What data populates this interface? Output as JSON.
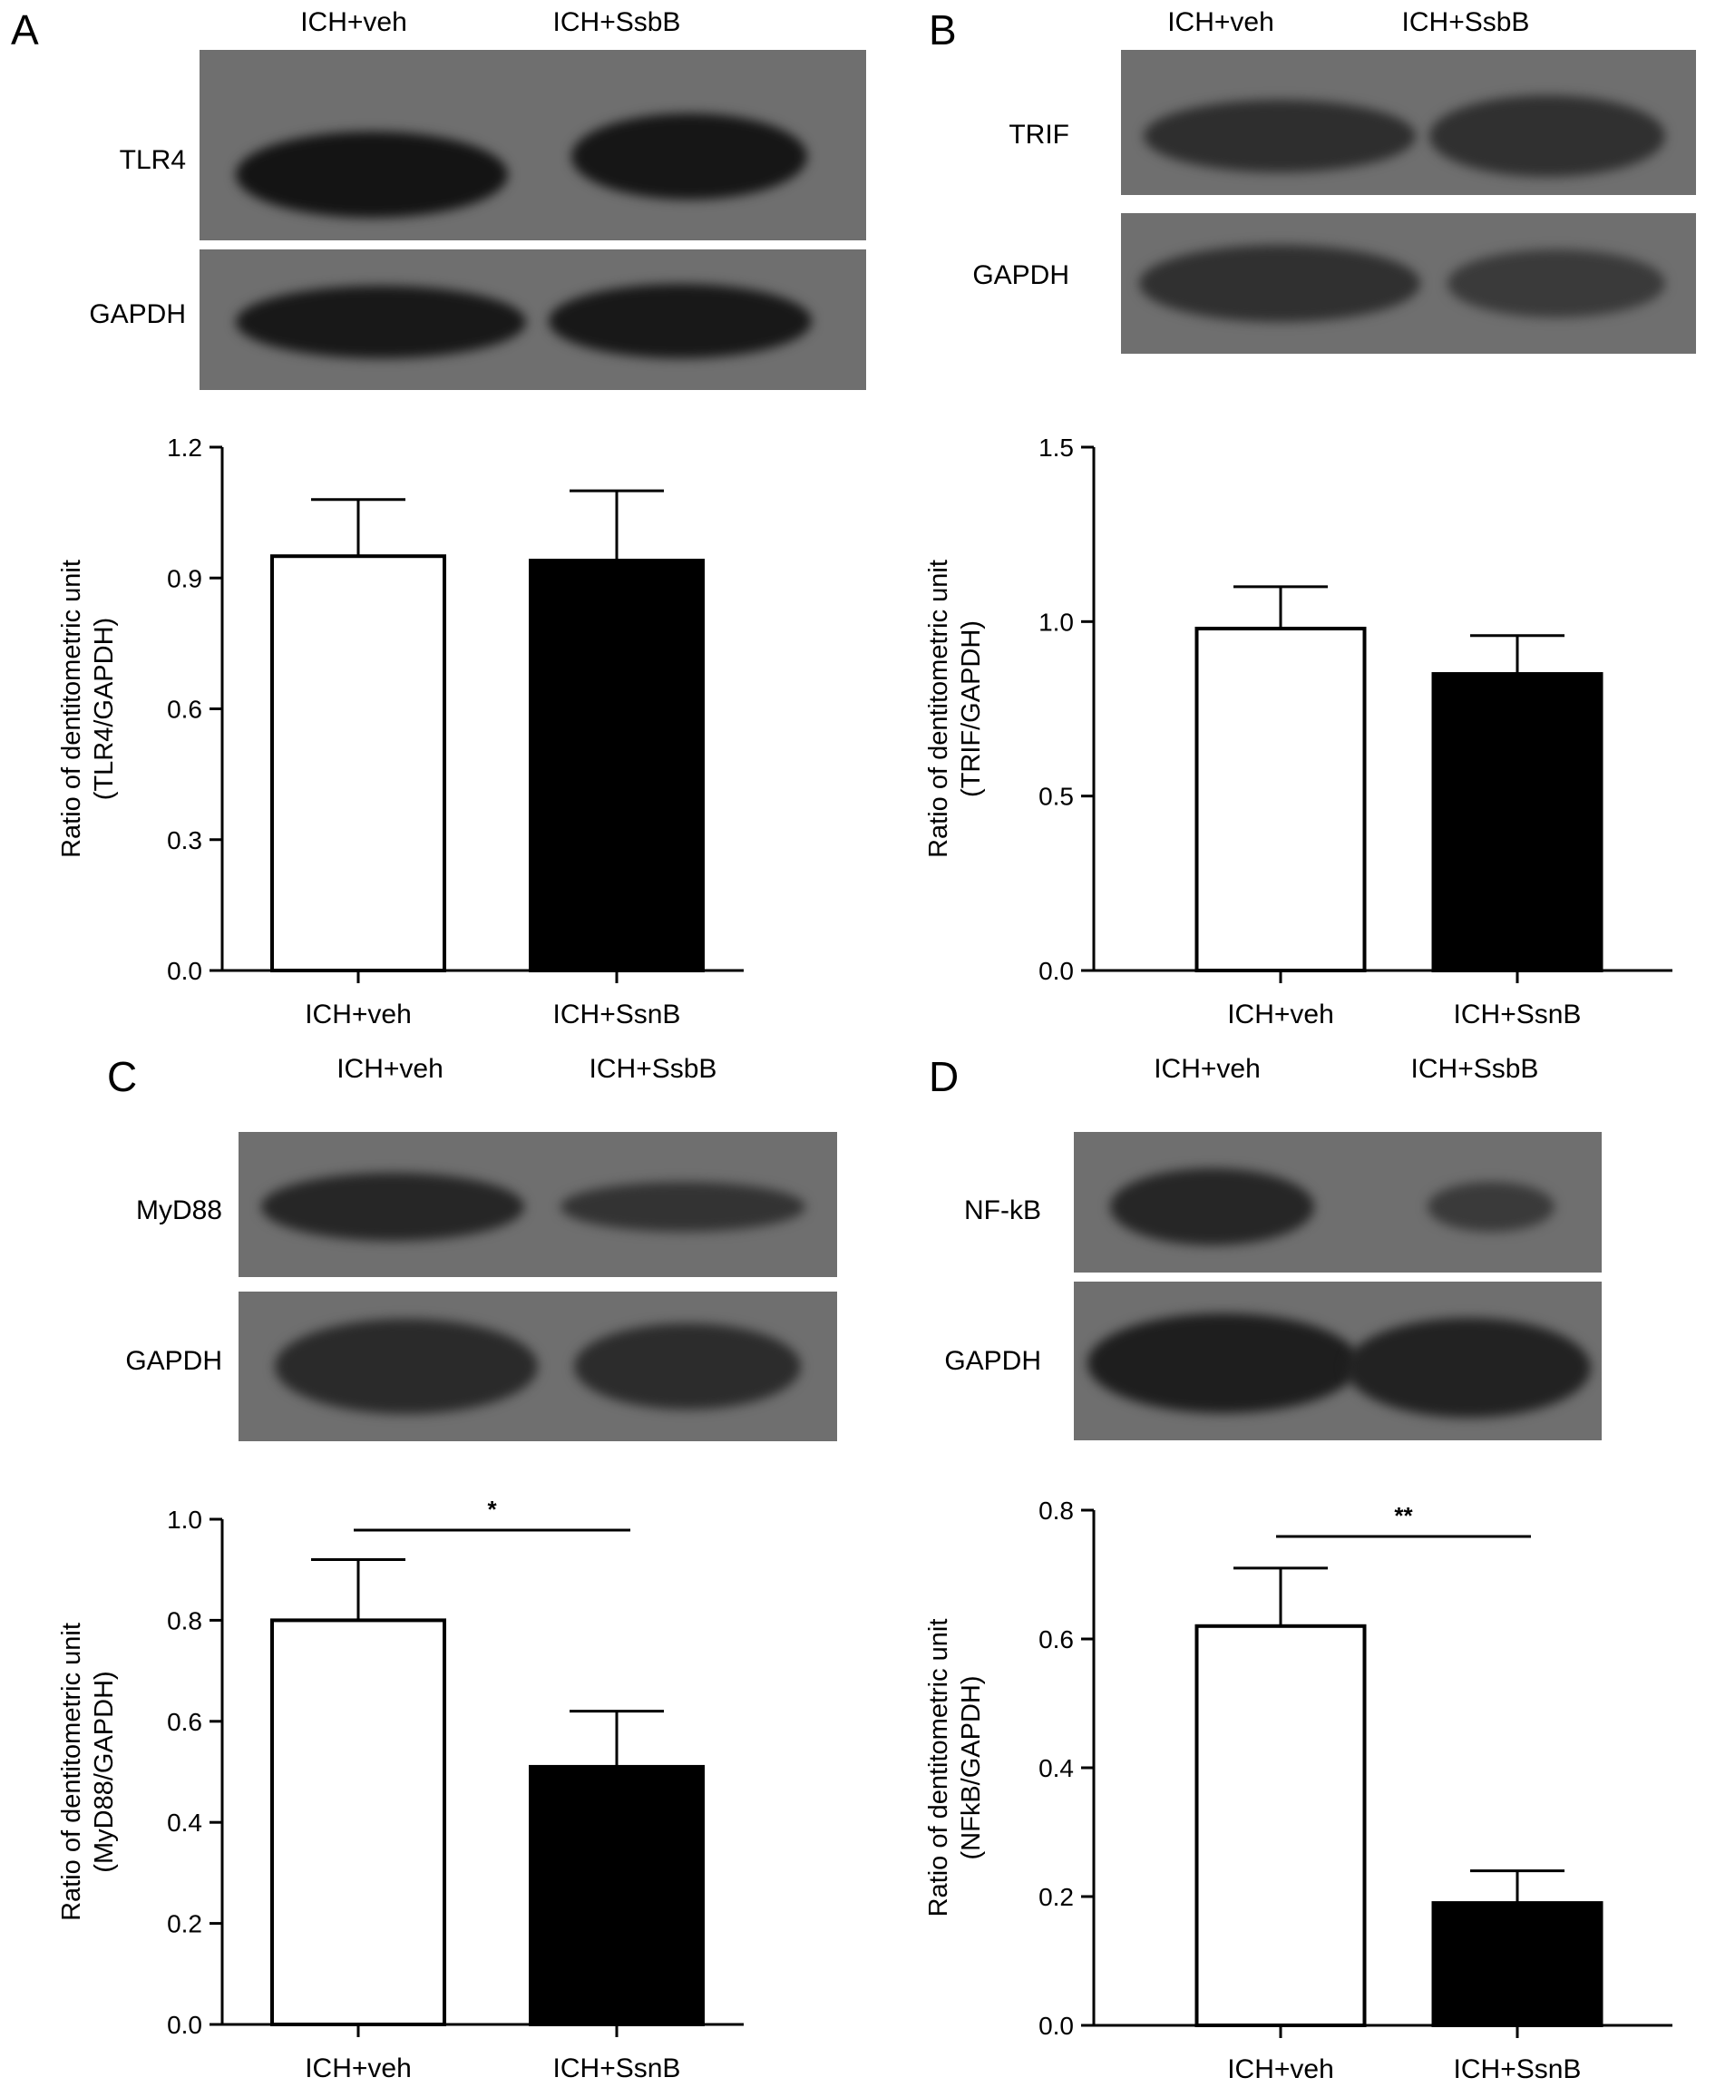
{
  "panels": [
    {
      "letter": "A",
      "blot": {
        "lane_labels": [
          "ICH+veh",
          "ICH+SsbB"
        ],
        "rows": [
          {
            "label": "TLR4",
            "intensity": [
              1.0,
              0.92
            ]
          },
          {
            "label": "GAPDH",
            "intensity": [
              1.0,
              0.98
            ]
          }
        ]
      }
    },
    {
      "letter": "B",
      "blot": {
        "lane_labels": [
          "ICH+veh",
          "ICH+SsbB"
        ],
        "rows": [
          {
            "label": "TRIF",
            "intensity": [
              0.75,
              0.7
            ]
          },
          {
            "label": "GAPDH",
            "intensity": [
              0.72,
              0.62
            ]
          }
        ]
      }
    },
    {
      "letter": "C",
      "blot": {
        "lane_labels": [
          "ICH+veh",
          "ICH+SsbB"
        ],
        "rows": [
          {
            "label": "MyD88",
            "intensity": [
              0.85,
              0.6
            ]
          },
          {
            "label": "GAPDH",
            "intensity": [
              0.8,
              0.75
            ]
          }
        ]
      }
    },
    {
      "letter": "D",
      "blot": {
        "lane_labels": [
          "ICH+veh",
          "ICH+SsbB"
        ],
        "rows": [
          {
            "label": "NF-kB",
            "intensity": [
              0.85,
              0.45
            ]
          },
          {
            "label": "GAPDH",
            "intensity": [
              0.95,
              0.9
            ]
          }
        ]
      }
    }
  ],
  "chart_data": [
    {
      "type": "bar",
      "categories": [
        "ICH+veh",
        "ICH+SsnB"
      ],
      "values": [
        0.95,
        0.94
      ],
      "errors": [
        0.13,
        0.16
      ],
      "fill_colors": [
        "#ffffff",
        "#000000"
      ],
      "ylabel_line1": "Ratio of dentitometric unit",
      "ylabel_line2": "(TLR4/GAPDH)",
      "ylim": [
        0,
        1.2
      ],
      "yticks": [
        "0.0",
        "0.3",
        "0.6",
        "0.9",
        "1.2"
      ],
      "significance": ""
    },
    {
      "type": "bar",
      "categories": [
        "ICH+veh",
        "ICH+SsnB"
      ],
      "values": [
        0.98,
        0.85
      ],
      "errors": [
        0.12,
        0.11
      ],
      "fill_colors": [
        "#ffffff",
        "#000000"
      ],
      "ylabel_line1": "Ratio of dentitometric unit",
      "ylabel_line2": "(TRIF/GAPDH)",
      "ylim": [
        0,
        1.5
      ],
      "yticks": [
        "0.0",
        "0.5",
        "1.0",
        "1.5"
      ],
      "significance": ""
    },
    {
      "type": "bar",
      "categories": [
        "ICH+veh",
        "ICH+SsnB"
      ],
      "values": [
        0.8,
        0.51
      ],
      "errors": [
        0.12,
        0.11
      ],
      "fill_colors": [
        "#ffffff",
        "#000000"
      ],
      "ylabel_line1": "Ratio of dentitometric unit",
      "ylabel_line2": "(MyD88/GAPDH)",
      "ylim": [
        0,
        1.0
      ],
      "yticks": [
        "0.0",
        "0.2",
        "0.4",
        "0.6",
        "0.8",
        "1.0"
      ],
      "significance": "*"
    },
    {
      "type": "bar",
      "categories": [
        "ICH+veh",
        "ICH+SsnB"
      ],
      "values": [
        0.62,
        0.19
      ],
      "errors": [
        0.09,
        0.05
      ],
      "fill_colors": [
        "#ffffff",
        "#000000"
      ],
      "ylabel_line1": "Ratio of dentitometric unit",
      "ylabel_line2": "(NFkB/GAPDH)",
      "ylim": [
        0,
        0.8
      ],
      "yticks": [
        "0.0",
        "0.2",
        "0.4",
        "0.6",
        "0.8"
      ],
      "significance": "**"
    }
  ]
}
